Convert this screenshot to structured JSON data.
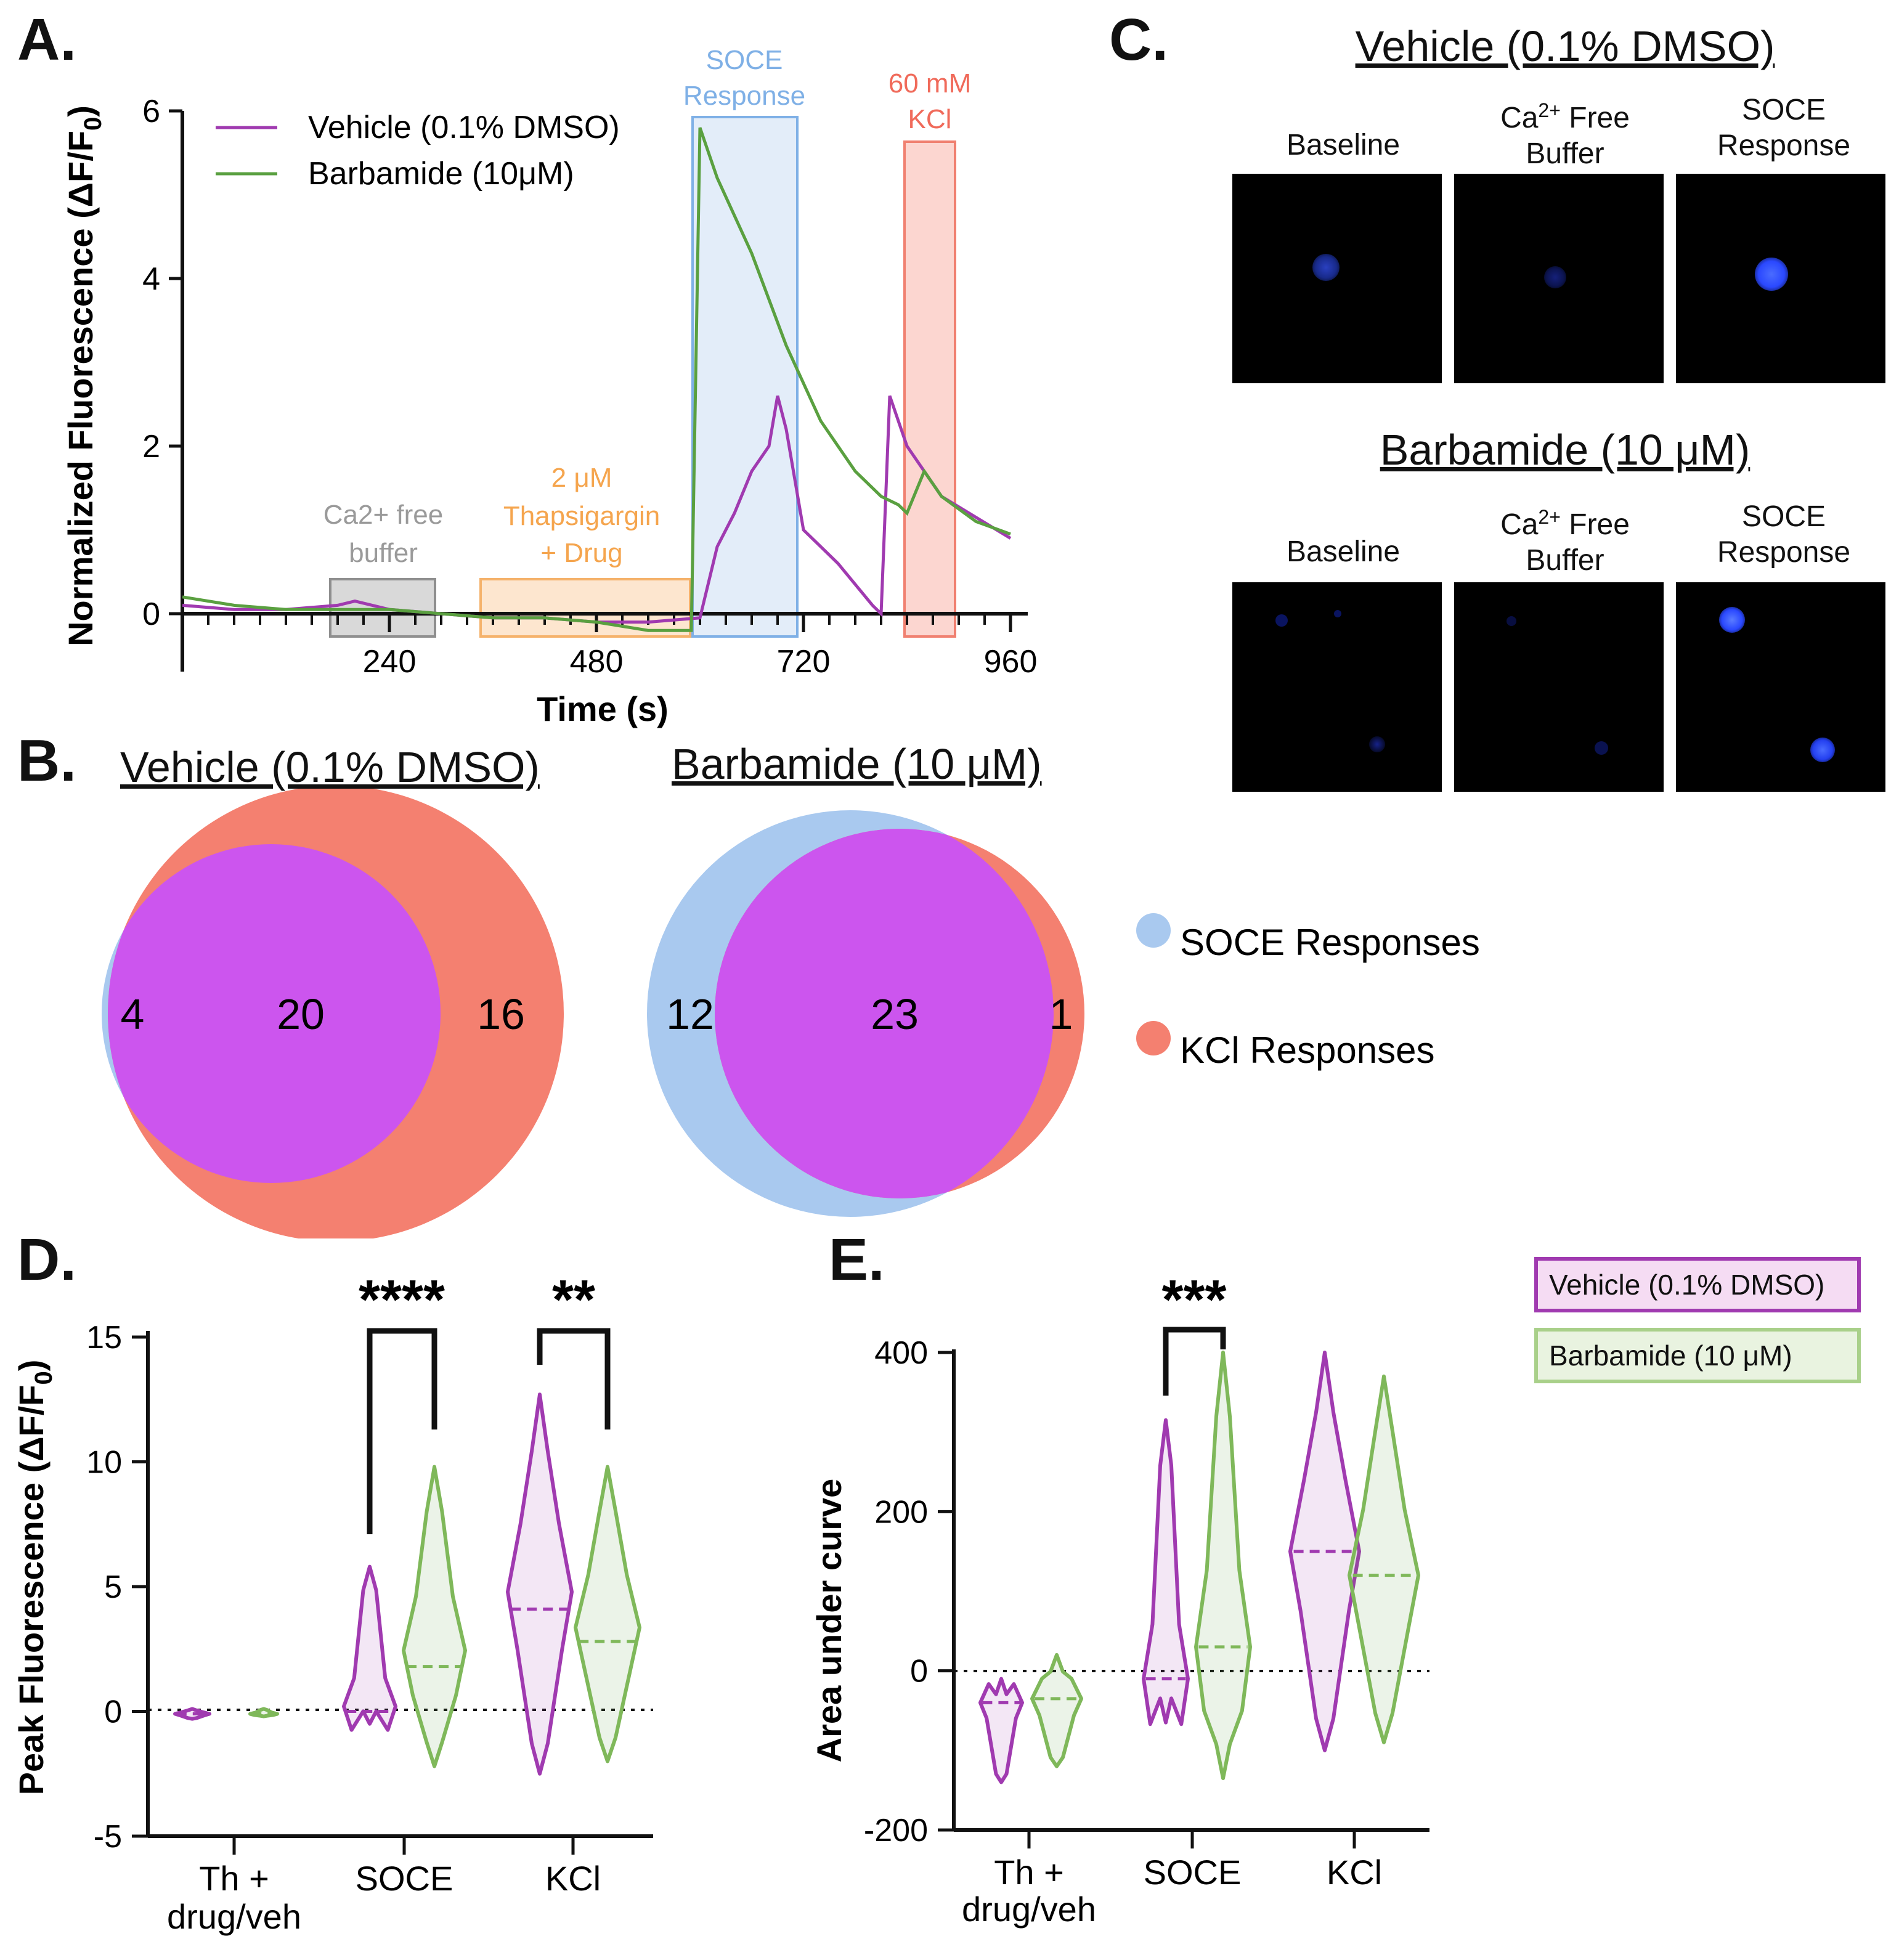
{
  "panel_labels": {
    "A": "A.",
    "B": "B.",
    "C": "C.",
    "D": "D.",
    "E": "E."
  },
  "panelA": {
    "ylabel": "Normalized Fluorescence (ΔF/F0)",
    "xlabel": "Time (s)",
    "xticks": [
      "240",
      "480",
      "720",
      "960"
    ],
    "yticks": [
      "0",
      "2",
      "4",
      "6"
    ],
    "legend": {
      "vehicle": "Vehicle (0.1% DMSO)",
      "barbamide": "Barbamide (10μM)"
    },
    "regions": {
      "ca_free": {
        "line1": "Ca2+ free",
        "line2": "buffer",
        "color": "#9a9a9a"
      },
      "thapsigargin": {
        "line1": "2 μM",
        "line2": "Thapsigargin",
        "line3": "+ Drug",
        "color": "#f5b26b"
      },
      "soce": {
        "line1": "SOCE",
        "line2": "Response",
        "color": "#7fb0e6"
      },
      "kcl": {
        "line1": "60 mM",
        "line2": "KCl",
        "color": "#f08070"
      }
    },
    "colors": {
      "vehicle": "#a03ab0",
      "barbamide": "#5aa040"
    }
  },
  "chart_data": [
    {
      "type": "line",
      "title": "",
      "xlabel": "Time (s)",
      "ylabel": "Normalized Fluorescence (ΔF/F0)",
      "xlim": [
        0,
        960
      ],
      "ylim": [
        0,
        6
      ],
      "series": [
        {
          "name": "Vehicle (0.1% DMSO)",
          "x": [
            0,
            60,
            120,
            180,
            200,
            240,
            300,
            360,
            420,
            480,
            540,
            600,
            620,
            640,
            660,
            680,
            690,
            700,
            720,
            760,
            800,
            810,
            820,
            840,
            880,
            960
          ],
          "y": [
            0.1,
            0.05,
            0.05,
            0.1,
            0.15,
            0.05,
            0.0,
            -0.05,
            -0.05,
            -0.1,
            -0.1,
            -0.05,
            0.8,
            1.2,
            1.7,
            2.0,
            2.6,
            2.2,
            1.0,
            0.6,
            0.1,
            0.0,
            2.6,
            2.0,
            1.4,
            0.9
          ]
        },
        {
          "name": "Barbamide (10μM)",
          "x": [
            0,
            60,
            120,
            180,
            240,
            300,
            360,
            420,
            480,
            540,
            590,
            600,
            620,
            660,
            700,
            740,
            780,
            810,
            830,
            840,
            860,
            880,
            920,
            960
          ],
          "y": [
            0.2,
            0.1,
            0.05,
            0.05,
            0.05,
            0.0,
            -0.05,
            -0.05,
            -0.1,
            -0.2,
            -0.2,
            5.8,
            5.2,
            4.3,
            3.2,
            2.3,
            1.7,
            1.4,
            1.3,
            1.2,
            1.7,
            1.4,
            1.1,
            0.95
          ]
        }
      ]
    },
    {
      "type": "venn",
      "title": "Vehicle (0.1% DMSO)",
      "sets": [
        {
          "name": "SOCE Responses",
          "only": 4
        },
        {
          "name": "KCl Responses",
          "only": 16
        }
      ],
      "intersection": 20
    },
    {
      "type": "venn",
      "title": "Barbamide (10 μM)",
      "sets": [
        {
          "name": "SOCE Responses",
          "only": 12
        },
        {
          "name": "KCl Responses",
          "only": 1
        }
      ],
      "intersection": 23
    },
    {
      "type": "violin",
      "ylabel": "Peak Fluorescence (ΔF/F0)",
      "categories": [
        "Th + drug/veh",
        "SOCE",
        "KCl"
      ],
      "ylim": [
        -5,
        15
      ],
      "series": [
        {
          "name": "Vehicle (0.1% DMSO)",
          "min": [
            -0.3,
            -0.5,
            -2.5
          ],
          "median": [
            -0.1,
            0.0,
            4.1
          ],
          "max": [
            0.1,
            5.8,
            12.7
          ]
        },
        {
          "name": "Barbamide (10 μM)",
          "min": [
            -0.2,
            -2.2,
            -2.0
          ],
          "median": [
            -0.1,
            1.8,
            2.8
          ],
          "max": [
            0.1,
            9.8,
            9.8
          ]
        }
      ],
      "significance": [
        "",
        "****",
        "**"
      ]
    },
    {
      "type": "violin",
      "ylabel": "Area under curve",
      "categories": [
        "Th + drug/veh",
        "SOCE",
        "KCl"
      ],
      "ylim": [
        -200,
        400
      ],
      "series": [
        {
          "name": "Vehicle (0.1% DMSO)",
          "min": [
            -140,
            -65,
            -100
          ],
          "median": [
            -40,
            -10,
            150
          ],
          "max": [
            -10,
            315,
            400
          ]
        },
        {
          "name": "Barbamide (10 μM)",
          "min": [
            -120,
            -135,
            -90
          ],
          "median": [
            -35,
            30,
            120
          ],
          "max": [
            20,
            400,
            370
          ]
        }
      ],
      "significance": [
        "",
        "***",
        ""
      ]
    }
  ],
  "panelB": {
    "vehicle": {
      "title": "Vehicle (0.1% DMSO)",
      "left": "4",
      "mid": "20",
      "right": "16"
    },
    "barbamide": {
      "title": "Barbamide (10 μM)",
      "left": "12",
      "mid": "23",
      "right": "1"
    },
    "legend": {
      "soce": "SOCE Responses",
      "kcl": "KCl Responses"
    },
    "colors": {
      "soce": "#a9c9ef",
      "kcl": "#f48070",
      "overlap": "#cc55ee"
    }
  },
  "panelC": {
    "vehicle_title": "Vehicle (0.1% DMSO)",
    "barbamide_title": "Barbamide (10 μM)",
    "col_baseline": "Baseline",
    "col_ca_line1": "Ca2+ Free",
    "col_ca_line2": "Buffer",
    "col_soce_line1": "SOCE",
    "col_soce_line2": "Response"
  },
  "panelD": {
    "ylabel": "Peak Fluorescence (ΔF/F0)",
    "yticks": [
      "-5",
      "0",
      "5",
      "10",
      "15"
    ],
    "xcat1a": "Th +",
    "xcat1b": "drug/veh",
    "xcat2": "SOCE",
    "xcat3": "KCl",
    "sig_soce": "****",
    "sig_kcl": "**"
  },
  "panelE": {
    "ylabel": "Area under curve",
    "yticks": [
      "-200",
      "0",
      "200",
      "400"
    ],
    "xcat1a": "Th +",
    "xcat1b": "drug/veh",
    "xcat2": "SOCE",
    "xcat3": "KCl",
    "sig_soce": "***",
    "legend": {
      "vehicle": "Vehicle (0.1% DMSO)",
      "barbamide": "Barbamide (10 μM)"
    }
  }
}
